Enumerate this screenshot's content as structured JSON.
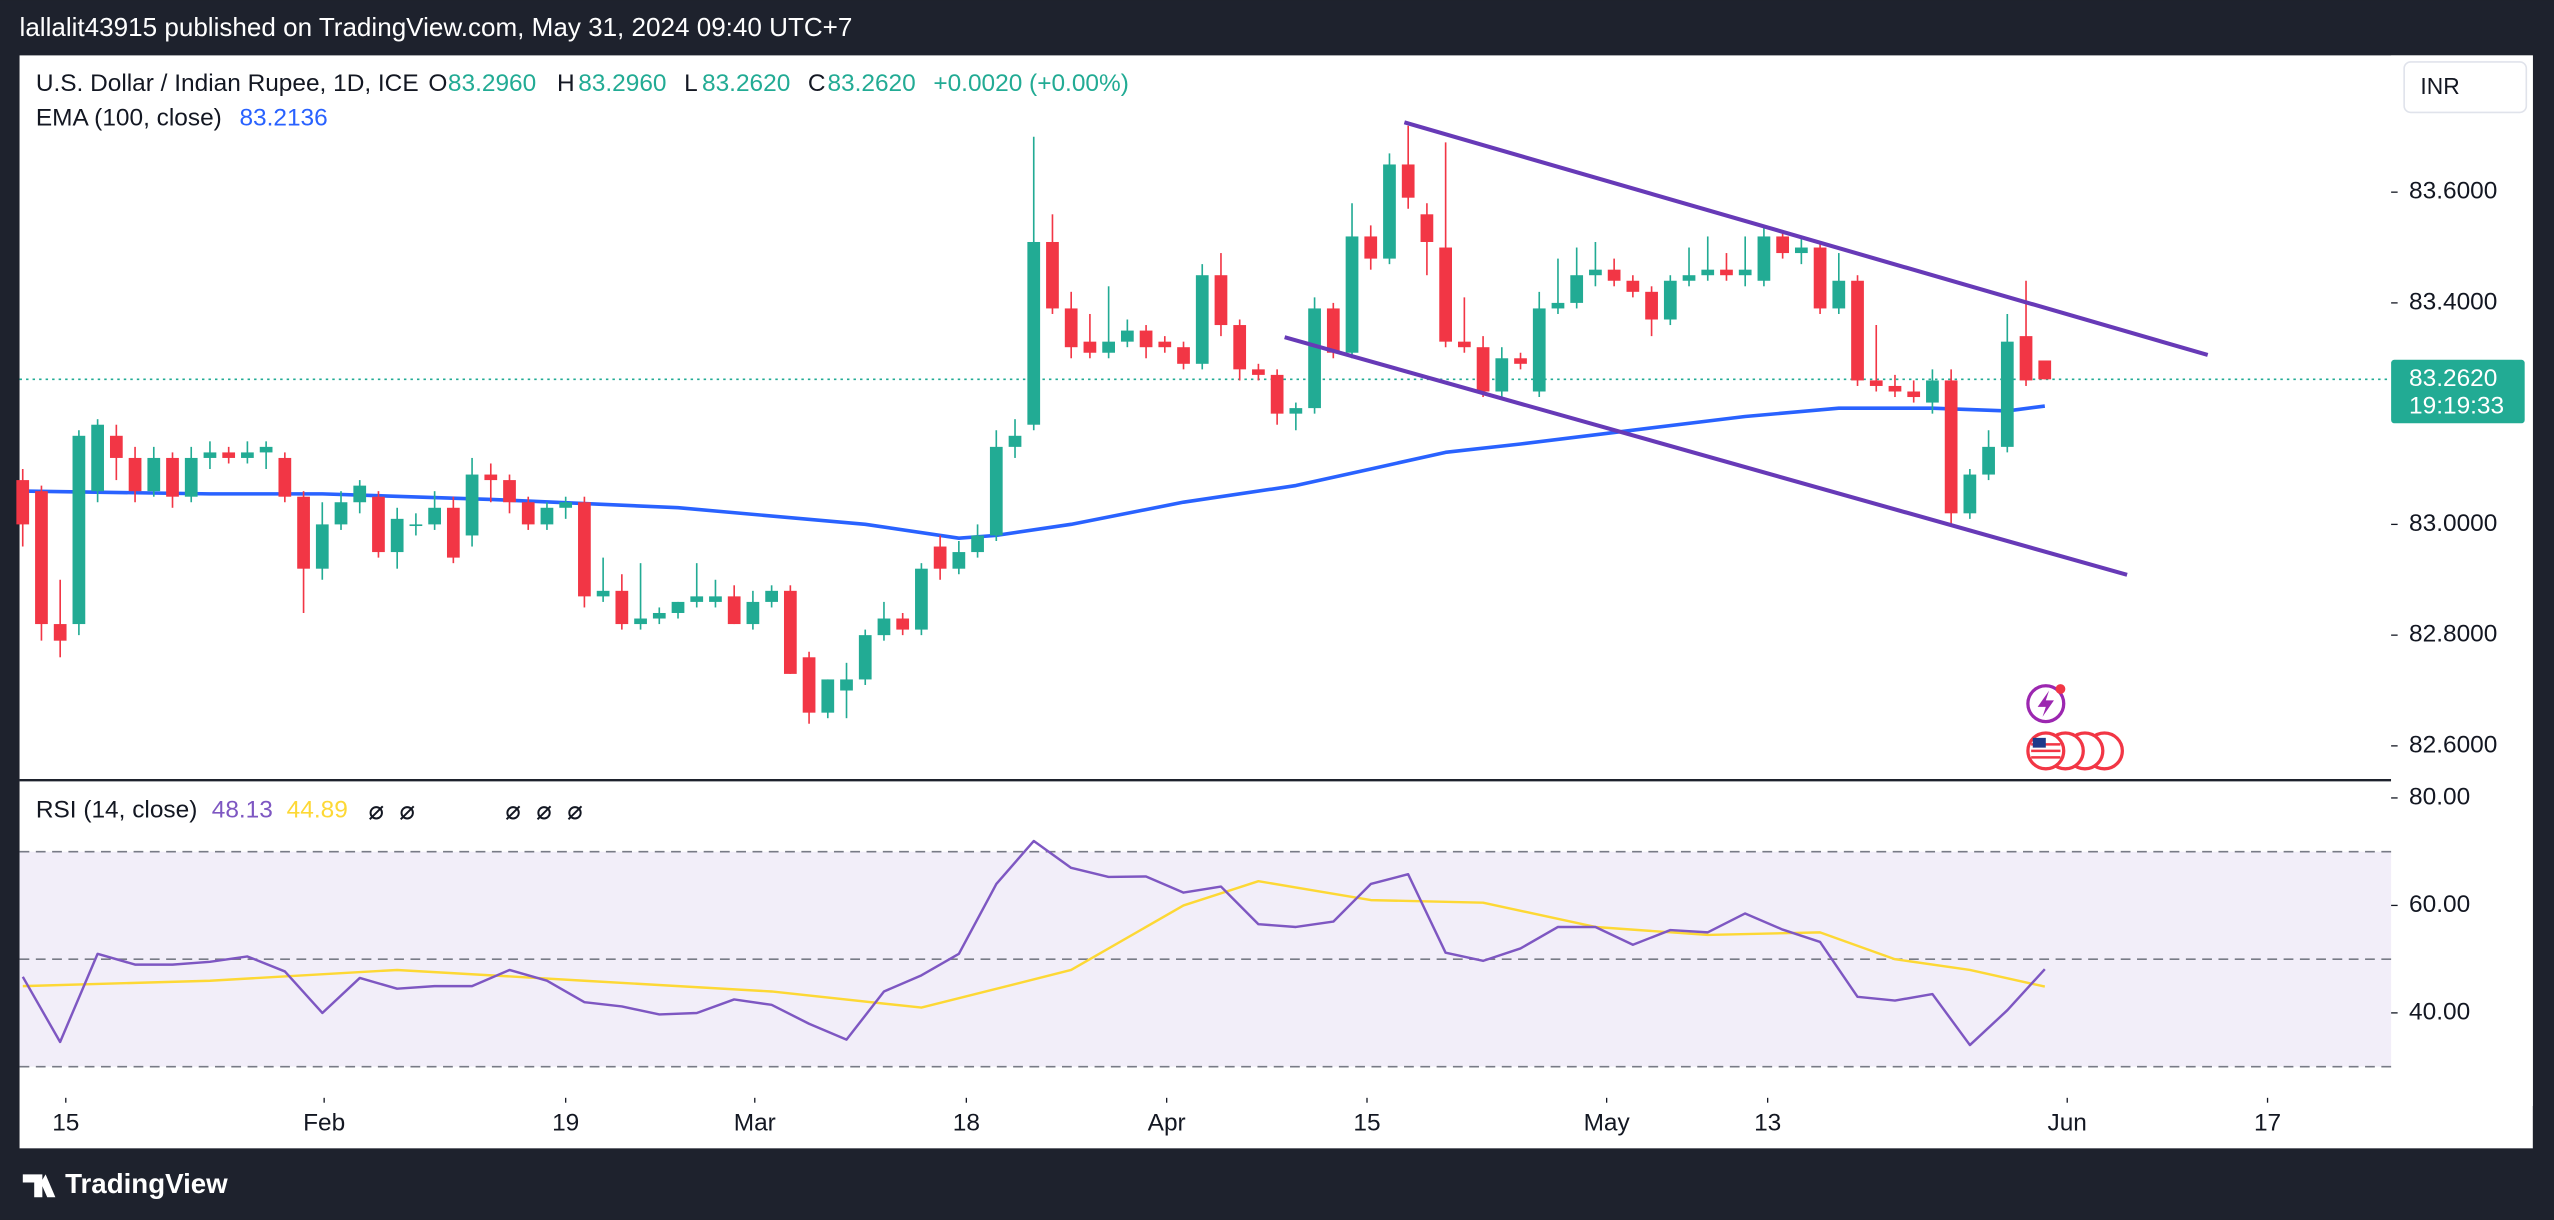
{
  "header": {
    "publisher": "lallalit43915 published on TradingView.com, May 31, 2024 09:40 UTC+7",
    "footer": "TradingView",
    "currency": "INR"
  },
  "chart_data": {
    "type": "candlestick",
    "title": "U.S. Dollar / Indian Rupee, 1D, ICE",
    "ohlc_labels": {
      "o": "O",
      "o_value": "83.2960",
      "h": "H",
      "h_value": "83.2960",
      "l": "L",
      "l_value": "83.2620",
      "c": "C",
      "c_value": "83.2620",
      "change": "+0.0020 (+0.00%)"
    },
    "up_color": "#22ab94",
    "down_color": "#f23645",
    "candles": [
      [
        83.08,
        83.1,
        82.96,
        83.0
      ],
      [
        83.06,
        83.07,
        82.79,
        82.82
      ],
      [
        82.82,
        82.9,
        82.76,
        82.79
      ],
      [
        82.82,
        83.17,
        82.8,
        83.16
      ],
      [
        83.06,
        83.19,
        83.04,
        83.18
      ],
      [
        83.16,
        83.18,
        83.08,
        83.12
      ],
      [
        83.12,
        83.14,
        83.04,
        83.06
      ],
      [
        83.06,
        83.14,
        83.05,
        83.12
      ],
      [
        83.12,
        83.13,
        83.03,
        83.05
      ],
      [
        83.05,
        83.14,
        83.04,
        83.12
      ],
      [
        83.12,
        83.15,
        83.1,
        83.13
      ],
      [
        83.13,
        83.14,
        83.11,
        83.12
      ],
      [
        83.12,
        83.15,
        83.11,
        83.13
      ],
      [
        83.13,
        83.15,
        83.1,
        83.14
      ],
      [
        83.12,
        83.13,
        83.04,
        83.05
      ],
      [
        83.05,
        83.06,
        82.84,
        82.92
      ],
      [
        82.92,
        83.04,
        82.9,
        83.0
      ],
      [
        83.0,
        83.06,
        82.99,
        83.04
      ],
      [
        83.04,
        83.08,
        83.02,
        83.07
      ],
      [
        83.05,
        83.06,
        82.94,
        82.95
      ],
      [
        82.95,
        83.03,
        82.92,
        83.01
      ],
      [
        83.0,
        83.02,
        82.98,
        83.0
      ],
      [
        83.0,
        83.06,
        82.99,
        83.03
      ],
      [
        83.03,
        83.05,
        82.93,
        82.94
      ],
      [
        82.98,
        83.12,
        82.96,
        83.09
      ],
      [
        83.09,
        83.11,
        83.04,
        83.08
      ],
      [
        83.08,
        83.09,
        83.02,
        83.04
      ],
      [
        83.04,
        83.05,
        82.99,
        83.0
      ],
      [
        83.0,
        83.04,
        82.99,
        83.03
      ],
      [
        83.03,
        83.05,
        83.01,
        83.04
      ],
      [
        83.04,
        83.05,
        82.85,
        82.87
      ],
      [
        82.87,
        82.94,
        82.86,
        82.88
      ],
      [
        82.88,
        82.91,
        82.81,
        82.82
      ],
      [
        82.82,
        82.93,
        82.81,
        82.83
      ],
      [
        82.83,
        82.85,
        82.82,
        82.84
      ],
      [
        82.84,
        82.86,
        82.83,
        82.86
      ],
      [
        82.86,
        82.93,
        82.85,
        82.87
      ],
      [
        82.86,
        82.9,
        82.85,
        82.87
      ],
      [
        82.87,
        82.89,
        82.82,
        82.82
      ],
      [
        82.82,
        82.88,
        82.81,
        82.86
      ],
      [
        82.86,
        82.89,
        82.85,
        82.88
      ],
      [
        82.88,
        82.89,
        82.73,
        82.73
      ],
      [
        82.76,
        82.77,
        82.64,
        82.66
      ],
      [
        82.66,
        82.72,
        82.65,
        82.72
      ],
      [
        82.7,
        82.75,
        82.65,
        82.72
      ],
      [
        82.72,
        82.81,
        82.71,
        82.8
      ],
      [
        82.8,
        82.86,
        82.79,
        82.83
      ],
      [
        82.83,
        82.84,
        82.8,
        82.81
      ],
      [
        82.81,
        82.93,
        82.8,
        82.92
      ],
      [
        82.96,
        82.98,
        82.9,
        82.92
      ],
      [
        82.92,
        82.97,
        82.91,
        82.95
      ],
      [
        82.95,
        83.0,
        82.94,
        82.98
      ],
      [
        82.98,
        83.17,
        82.97,
        83.14
      ],
      [
        83.14,
        83.19,
        83.12,
        83.16
      ],
      [
        83.18,
        83.7,
        83.17,
        83.51
      ],
      [
        83.51,
        83.56,
        83.38,
        83.39
      ],
      [
        83.39,
        83.42,
        83.3,
        83.32
      ],
      [
        83.33,
        83.38,
        83.3,
        83.31
      ],
      [
        83.31,
        83.43,
        83.3,
        83.33
      ],
      [
        83.33,
        83.37,
        83.32,
        83.35
      ],
      [
        83.35,
        83.36,
        83.3,
        83.32
      ],
      [
        83.33,
        83.34,
        83.31,
        83.32
      ],
      [
        83.32,
        83.33,
        83.28,
        83.29
      ],
      [
        83.29,
        83.47,
        83.28,
        83.45
      ],
      [
        83.45,
        83.49,
        83.34,
        83.36
      ],
      [
        83.36,
        83.37,
        83.26,
        83.28
      ],
      [
        83.28,
        83.29,
        83.26,
        83.27
      ],
      [
        83.27,
        83.28,
        83.18,
        83.2
      ],
      [
        83.2,
        83.22,
        83.17,
        83.21
      ],
      [
        83.21,
        83.41,
        83.2,
        83.39
      ],
      [
        83.39,
        83.4,
        83.3,
        83.31
      ],
      [
        83.31,
        83.58,
        83.3,
        83.52
      ],
      [
        83.52,
        83.54,
        83.46,
        83.48
      ],
      [
        83.48,
        83.67,
        83.47,
        83.65
      ],
      [
        83.65,
        83.72,
        83.57,
        83.59
      ],
      [
        83.56,
        83.58,
        83.45,
        83.51
      ],
      [
        83.5,
        83.69,
        83.32,
        83.33
      ],
      [
        83.33,
        83.41,
        83.31,
        83.32
      ],
      [
        83.32,
        83.34,
        83.23,
        83.24
      ],
      [
        83.24,
        83.32,
        83.23,
        83.3
      ],
      [
        83.3,
        83.31,
        83.28,
        83.29
      ],
      [
        83.24,
        83.42,
        83.23,
        83.39
      ],
      [
        83.39,
        83.48,
        83.38,
        83.4
      ],
      [
        83.4,
        83.5,
        83.39,
        83.45
      ],
      [
        83.45,
        83.51,
        83.43,
        83.46
      ],
      [
        83.46,
        83.48,
        83.43,
        83.44
      ],
      [
        83.44,
        83.45,
        83.41,
        83.42
      ],
      [
        83.42,
        83.43,
        83.34,
        83.37
      ],
      [
        83.37,
        83.45,
        83.36,
        83.44
      ],
      [
        83.44,
        83.5,
        83.43,
        83.45
      ],
      [
        83.45,
        83.52,
        83.44,
        83.46
      ],
      [
        83.46,
        83.49,
        83.44,
        83.45
      ],
      [
        83.45,
        83.52,
        83.43,
        83.46
      ],
      [
        83.44,
        83.54,
        83.43,
        83.52
      ],
      [
        83.52,
        83.53,
        83.48,
        83.49
      ],
      [
        83.49,
        83.52,
        83.47,
        83.5
      ],
      [
        83.5,
        83.51,
        83.38,
        83.39
      ],
      [
        83.39,
        83.49,
        83.38,
        83.44
      ],
      [
        83.44,
        83.45,
        83.25,
        83.26
      ],
      [
        83.26,
        83.36,
        83.24,
        83.25
      ],
      [
        83.25,
        83.27,
        83.23,
        83.24
      ],
      [
        83.24,
        83.26,
        83.22,
        83.23
      ],
      [
        83.22,
        83.28,
        83.2,
        83.26
      ],
      [
        83.26,
        83.28,
        83.0,
        83.02
      ],
      [
        83.02,
        83.1,
        83.01,
        83.09
      ],
      [
        83.09,
        83.17,
        83.08,
        83.14
      ],
      [
        83.14,
        83.38,
        83.13,
        83.33
      ],
      [
        83.34,
        83.44,
        83.25,
        83.26
      ],
      [
        83.296,
        83.296,
        83.262,
        83.262
      ]
    ],
    "xlim": [
      -0.17,
      126.5
    ],
    "xticks": [
      {
        "value": 2.3,
        "label": "15"
      },
      {
        "value": 16.1,
        "label": "Feb"
      },
      {
        "value": 29.0,
        "label": "19"
      },
      {
        "value": 39.1,
        "label": "Mar"
      },
      {
        "value": 50.4,
        "label": "18"
      },
      {
        "value": 61.1,
        "label": "Apr"
      },
      {
        "value": 71.8,
        "label": "15"
      },
      {
        "value": 84.6,
        "label": "May"
      },
      {
        "value": 93.2,
        "label": "13"
      },
      {
        "value": 109.2,
        "label": "Jun"
      },
      {
        "value": 119.9,
        "label": "17"
      }
    ],
    "ylim": [
      82.538,
      83.847
    ],
    "yticks": [
      {
        "value": 83.6,
        "label": "83.6000"
      },
      {
        "value": 83.4,
        "label": "83.4000"
      },
      {
        "value": 83.0,
        "label": "83.0000"
      },
      {
        "value": 82.8,
        "label": "82.8000"
      },
      {
        "value": 82.6,
        "label": "82.6000"
      }
    ],
    "last_price": {
      "value": 83.262,
      "label": "83.2620",
      "countdown": "19:19:33"
    },
    "ema": {
      "name": "EMA (100, close)",
      "value_label": "83.2136",
      "color": "#2962ff",
      "x": [
        0,
        10,
        16,
        25,
        35,
        45,
        50,
        52,
        56,
        62,
        68,
        72,
        76,
        80,
        86,
        92,
        97,
        102,
        106,
        108
      ],
      "values": [
        83.06,
        83.055,
        83.055,
        83.045,
        83.03,
        83.0,
        82.975,
        82.98,
        83.0,
        83.04,
        83.07,
        83.1,
        83.13,
        83.145,
        83.17,
        83.195,
        83.21,
        83.21,
        83.205,
        83.2136
      ]
    },
    "trendlines": [
      {
        "color": "#673ab7",
        "x": [
          73.8,
          116.7
        ],
        "values": [
          83.726,
          83.306
        ]
      },
      {
        "color": "#673ab7",
        "x": [
          67.4,
          112.4
        ],
        "values": [
          83.338,
          82.909
        ]
      }
    ],
    "rsi": {
      "name": "RSI (14, close)",
      "ylim": [
        24.8,
        83.3
      ],
      "yticks": [
        {
          "value": 80,
          "label": "80.00"
        },
        {
          "value": 60,
          "label": "60.00"
        },
        {
          "value": 40,
          "label": "40.00"
        }
      ],
      "bands": [
        70,
        50,
        30
      ],
      "series": [
        {
          "name": "48.13",
          "color": "#7e57c2",
          "x": [
            0,
            2,
            4,
            6,
            8,
            10,
            12,
            14,
            16,
            18,
            20,
            22,
            24,
            26,
            28,
            30,
            32,
            34,
            36,
            38,
            40,
            42,
            44,
            46,
            48,
            50,
            52,
            54,
            56,
            58,
            60,
            62,
            64,
            66,
            68,
            70,
            72,
            74,
            76,
            78,
            80,
            82,
            84,
            86,
            88,
            90,
            92,
            94,
            96,
            98,
            100,
            102,
            104,
            106,
            108
          ],
          "values": [
            46.7,
            34.6,
            51,
            49,
            49,
            49.5,
            50.5,
            47.7,
            40,
            46.5,
            44.5,
            45,
            45,
            48,
            46,
            42,
            41.2,
            39.7,
            40,
            42.5,
            41.5,
            38,
            35,
            44,
            47,
            51,
            64,
            72,
            67,
            65.3,
            65.4,
            62.4,
            63.5,
            56.5,
            56,
            57,
            64,
            65.8,
            51.2,
            49.7,
            52,
            56,
            56,
            52.7,
            55.4,
            55,
            58.5,
            55.5,
            53.2,
            43,
            42.3,
            43.5,
            34,
            40.5,
            48.13
          ]
        },
        {
          "name": "44.89",
          "color": "#fdd835",
          "x": [
            0,
            10,
            20,
            30,
            40,
            48,
            56,
            62,
            66,
            72,
            78,
            84,
            90,
            96,
            100,
            104,
            108
          ],
          "values": [
            45,
            46,
            48,
            46,
            44,
            41,
            48,
            60,
            64.5,
            61,
            60.5,
            56,
            54.5,
            55,
            50,
            48,
            44.89
          ]
        }
      ]
    }
  }
}
